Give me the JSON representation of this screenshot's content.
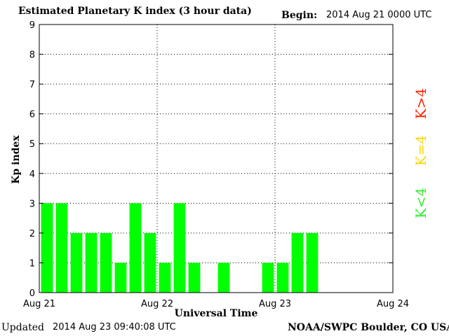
{
  "header": {
    "title": "Estimated Planetary K index (3 hour data)",
    "begin_label": "Begin:",
    "begin_value": "2014 Aug 21 0000 UTC"
  },
  "footer": {
    "updated_label": "Updated",
    "updated_value": "2014 Aug 23 09:40:08 UTC",
    "credit": "NOAA/SWPC Boulder, CO USA"
  },
  "legend": [
    {
      "label": "K<4",
      "color": "#33ee33"
    },
    {
      "label": "K=4",
      "color": "#ffd700"
    },
    {
      "label": "K>4",
      "color": "#ff2200"
    }
  ],
  "chart_data": {
    "type": "bar",
    "title": "Estimated Planetary K index (3 hour data)",
    "xlabel": "Universal Time",
    "ylabel": "Kp index",
    "ylim": [
      0,
      9
    ],
    "yticks": [
      "0",
      "1",
      "2",
      "3",
      "4",
      "5",
      "6",
      "7",
      "8",
      "9"
    ],
    "xticks": [
      "Aug 21",
      "Aug 22",
      "Aug 23",
      "Aug 24"
    ],
    "interval_hours": 3,
    "bar_color": "#00ff00",
    "grid": true,
    "values": [
      3,
      3,
      2,
      2,
      2,
      1,
      3,
      2,
      1,
      3,
      1,
      null,
      1,
      null,
      null,
      1,
      1,
      2,
      2
    ]
  }
}
